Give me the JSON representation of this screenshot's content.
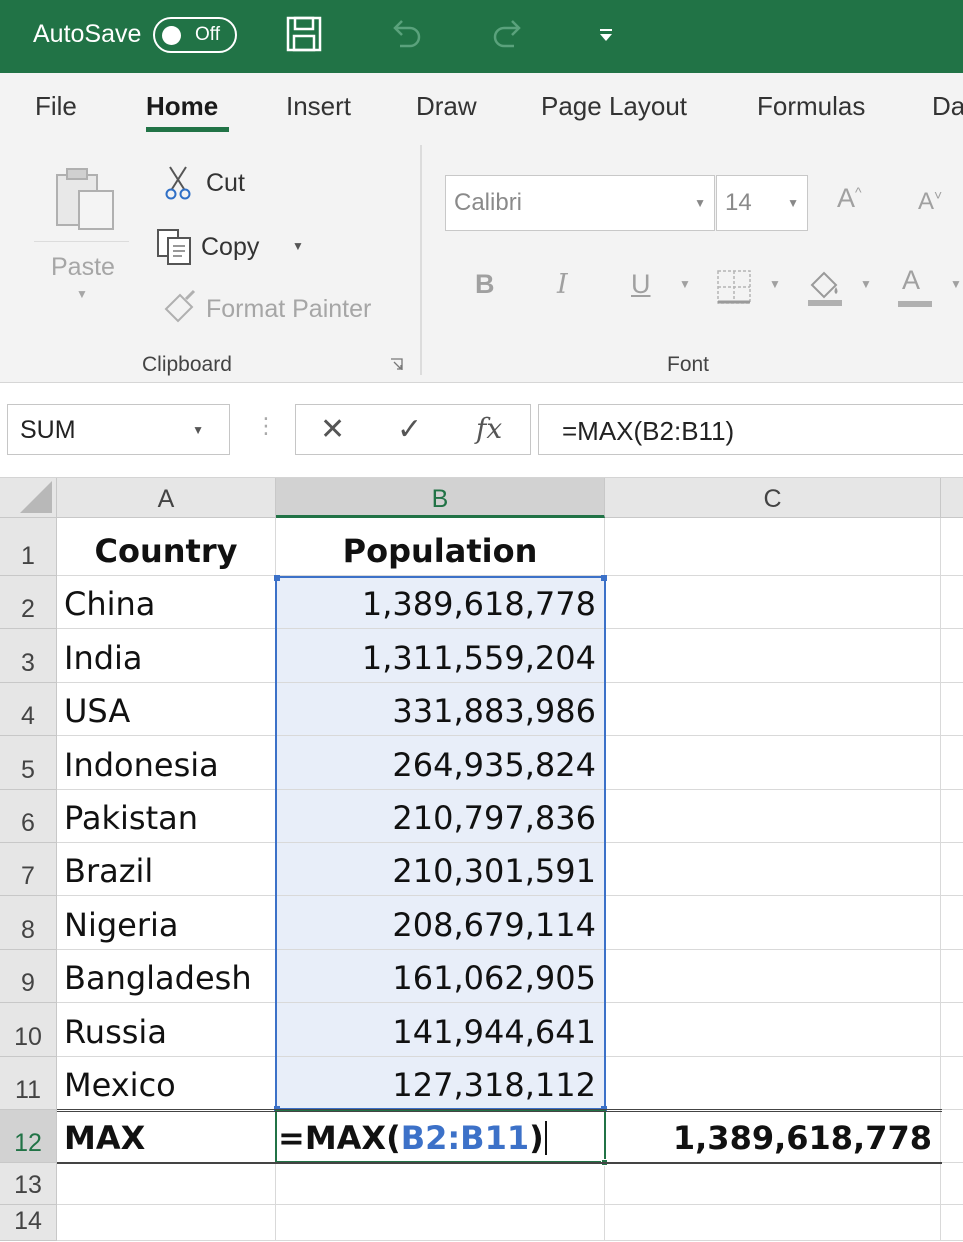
{
  "titlebar": {
    "autosave_label": "AutoSave",
    "autosave_state": "Off",
    "icons": [
      "save-icon",
      "undo-icon",
      "redo-icon",
      "customize-toolbar-icon"
    ]
  },
  "ribbon": {
    "tabs": [
      {
        "label": "File",
        "active": false
      },
      {
        "label": "Home",
        "active": true
      },
      {
        "label": "Insert",
        "active": false
      },
      {
        "label": "Draw",
        "active": false
      },
      {
        "label": "Page Layout",
        "active": false
      },
      {
        "label": "Formulas",
        "active": false
      },
      {
        "label": "Da",
        "active": false
      }
    ],
    "clipboard": {
      "paste": "Paste",
      "cut": "Cut",
      "copy": "Copy",
      "format_painter": "Format Painter",
      "group_label": "Clipboard"
    },
    "font": {
      "font_name": "Calibri",
      "font_size": "14",
      "grow": "A",
      "shrink": "A",
      "bold": "B",
      "italic": "I",
      "underline": "U",
      "font_color": "A",
      "group_label": "Font"
    }
  },
  "formula_bar": {
    "name_box": "SUM",
    "cancel": "✕",
    "enter": "✓",
    "fx": "fx",
    "formula": "=MAX(B2:B11)"
  },
  "grid": {
    "columns": [
      "A",
      "B",
      "C"
    ],
    "rows": [
      "1",
      "2",
      "3",
      "4",
      "5",
      "6",
      "7",
      "8",
      "9",
      "10",
      "11",
      "12",
      "13",
      "14"
    ],
    "header": {
      "country": "Country",
      "population": "Population"
    },
    "data": [
      {
        "country": "China",
        "population": "1,389,618,778"
      },
      {
        "country": "India",
        "population": "1,311,559,204"
      },
      {
        "country": "USA",
        "population": "331,883,986"
      },
      {
        "country": "Indonesia",
        "population": "264,935,824"
      },
      {
        "country": "Pakistan",
        "population": "210,797,836"
      },
      {
        "country": "Brazil",
        "population": "210,301,591"
      },
      {
        "country": "Nigeria",
        "population": "208,679,114"
      },
      {
        "country": "Bangladesh",
        "population": "161,062,905"
      },
      {
        "country": "Russia",
        "population": "141,944,641"
      },
      {
        "country": "Mexico",
        "population": "127,318,112"
      }
    ],
    "summary": {
      "label": "MAX",
      "formula_prefix": "=MAX(",
      "formula_range": "B2:B11",
      "formula_suffix": ")",
      "result": "1,389,618,778"
    }
  },
  "colors": {
    "accent": "#217346",
    "range_highlight": "#3c71c8",
    "selection_fill": "#e8eef9"
  }
}
